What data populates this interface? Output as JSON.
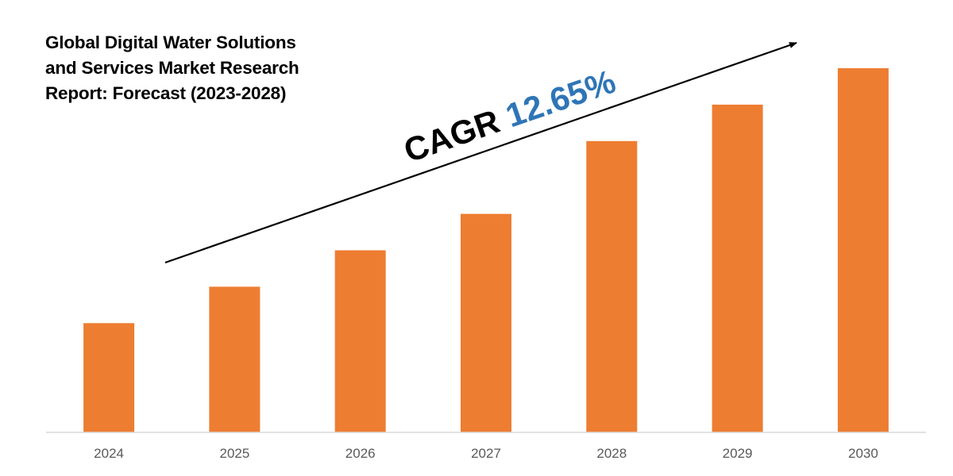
{
  "title_lines": [
    "Global Digital Water Solutions",
    "and Services Market Research",
    "Report: Forecast (2023-2028)"
  ],
  "cagr": {
    "label": "CAGR",
    "value": "12.65%"
  },
  "colors": {
    "bar": "#ED7D31",
    "cagr_value": "#2E75B6",
    "text": "#000000",
    "tick_label": "#595959",
    "axis": "#D9D9D9"
  },
  "chart_data": {
    "type": "bar",
    "title": "Global Digital Water Solutions and Services Market Research Report: Forecast (2023-2028)",
    "categories": [
      "2024",
      "2025",
      "2026",
      "2027",
      "2028",
      "2029",
      "2030"
    ],
    "values": [
      30,
      40,
      50,
      60,
      80,
      90,
      100
    ],
    "xlabel": "",
    "ylabel": "",
    "ylim": [
      0,
      100
    ],
    "grid": false,
    "annotations": [
      "CAGR 12.65%"
    ]
  }
}
